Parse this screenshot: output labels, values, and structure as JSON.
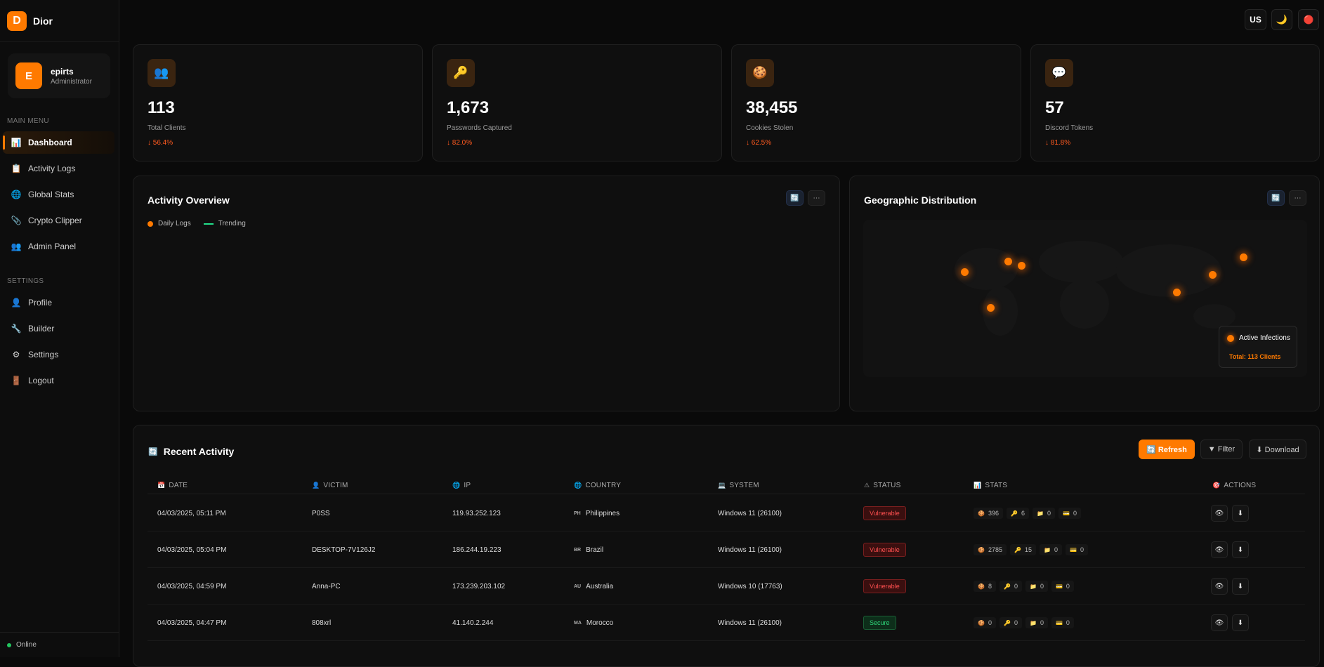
{
  "brand": {
    "logo": "D",
    "name": "Dior"
  },
  "user": {
    "initial": "E",
    "name": "epirts",
    "role": "Administrator"
  },
  "sidebar": {
    "main_title": "MAIN MENU",
    "main_items": [
      {
        "label": "Dashboard",
        "icon": "📊"
      },
      {
        "label": "Activity Logs",
        "icon": "📋"
      },
      {
        "label": "Global Stats",
        "icon": "🌐"
      },
      {
        "label": "Crypto Clipper",
        "icon": "📎"
      },
      {
        "label": "Admin Panel",
        "icon": "👥"
      }
    ],
    "settings_title": "SETTINGS",
    "settings_items": [
      {
        "label": "Profile",
        "icon": "👤"
      },
      {
        "label": "Builder",
        "icon": "🔧"
      },
      {
        "label": "Settings",
        "icon": "⚙"
      },
      {
        "label": "Logout",
        "icon": "🚪"
      }
    ],
    "status": "Online"
  },
  "topbar": {
    "lang": "US",
    "theme_icon": "🌙",
    "notify_icon": "🔴"
  },
  "stats": [
    {
      "icon": "👥",
      "value": "113",
      "label": "Total Clients",
      "change": "↓ 56.4%"
    },
    {
      "icon": "🔑",
      "value": "1,673",
      "label": "Passwords Captured",
      "change": "↓ 82.0%"
    },
    {
      "icon": "🍪",
      "value": "38,455",
      "label": "Cookies Stolen",
      "change": "↓ 62.5%"
    },
    {
      "icon": "💬",
      "value": "57",
      "label": "Discord Tokens",
      "change": "↓ 81.8%"
    }
  ],
  "activity": {
    "title": "Activity Overview",
    "legend_daily": "Daily Logs",
    "legend_trending": "Trending",
    "refresh_icon": "🔄",
    "more_icon": "⋯"
  },
  "geo": {
    "title": "Geographic Distribution",
    "legend_title": "Active Infections",
    "legend_total": "Total: 113 Clients",
    "refresh_icon": "🔄",
    "more_icon": "⋯"
  },
  "recent": {
    "icon": "🔄",
    "title": "Recent Activity",
    "refresh": "🔄 Refresh",
    "filter": "▼ Filter",
    "download": "⬇ Download",
    "columns": [
      {
        "icon": "📅",
        "label": "DATE"
      },
      {
        "icon": "👤",
        "label": "VICTIM"
      },
      {
        "icon": "🌐",
        "label": "IP"
      },
      {
        "icon": "🌐",
        "label": "COUNTRY"
      },
      {
        "icon": "💻",
        "label": "SYSTEM"
      },
      {
        "icon": "⚠",
        "label": "STATUS"
      },
      {
        "icon": "📊",
        "label": "STATS"
      },
      {
        "icon": "🎯",
        "label": "ACTIONS"
      }
    ],
    "rows": [
      {
        "date": "04/03/2025, 05:11 PM",
        "victim": "P0SS",
        "ip": "119.93.252.123",
        "cc": "PH",
        "country": "Philippines",
        "system": "Windows 11 (26100)",
        "status": "Vulnerable",
        "cookies": "396",
        "passwords": "6",
        "files": "0",
        "cards": "0"
      },
      {
        "date": "04/03/2025, 05:04 PM",
        "victim": "DESKTOP-7V126J2",
        "ip": "186.244.19.223",
        "cc": "BR",
        "country": "Brazil",
        "system": "Windows 11 (26100)",
        "status": "Vulnerable",
        "cookies": "2785",
        "passwords": "15",
        "files": "0",
        "cards": "0"
      },
      {
        "date": "04/03/2025, 04:59 PM",
        "victim": "Anna-PC",
        "ip": "173.239.203.102",
        "cc": "AU",
        "country": "Australia",
        "system": "Windows 10 (17763)",
        "status": "Vulnerable",
        "cookies": "8",
        "passwords": "0",
        "files": "0",
        "cards": "0"
      },
      {
        "date": "04/03/2025, 04:47 PM",
        "victim": "808xrl",
        "ip": "41.140.2.244",
        "cc": "MA",
        "country": "Morocco",
        "system": "Windows 11 (26100)",
        "status": "Secure",
        "cookies": "0",
        "passwords": "0",
        "files": "0",
        "cards": "0"
      }
    ],
    "stat_icons": {
      "cookies": "🍪",
      "passwords": "🔑",
      "files": "📁",
      "cards": "💳"
    },
    "action_icons": {
      "view": "👁",
      "download": "⬇"
    }
  }
}
